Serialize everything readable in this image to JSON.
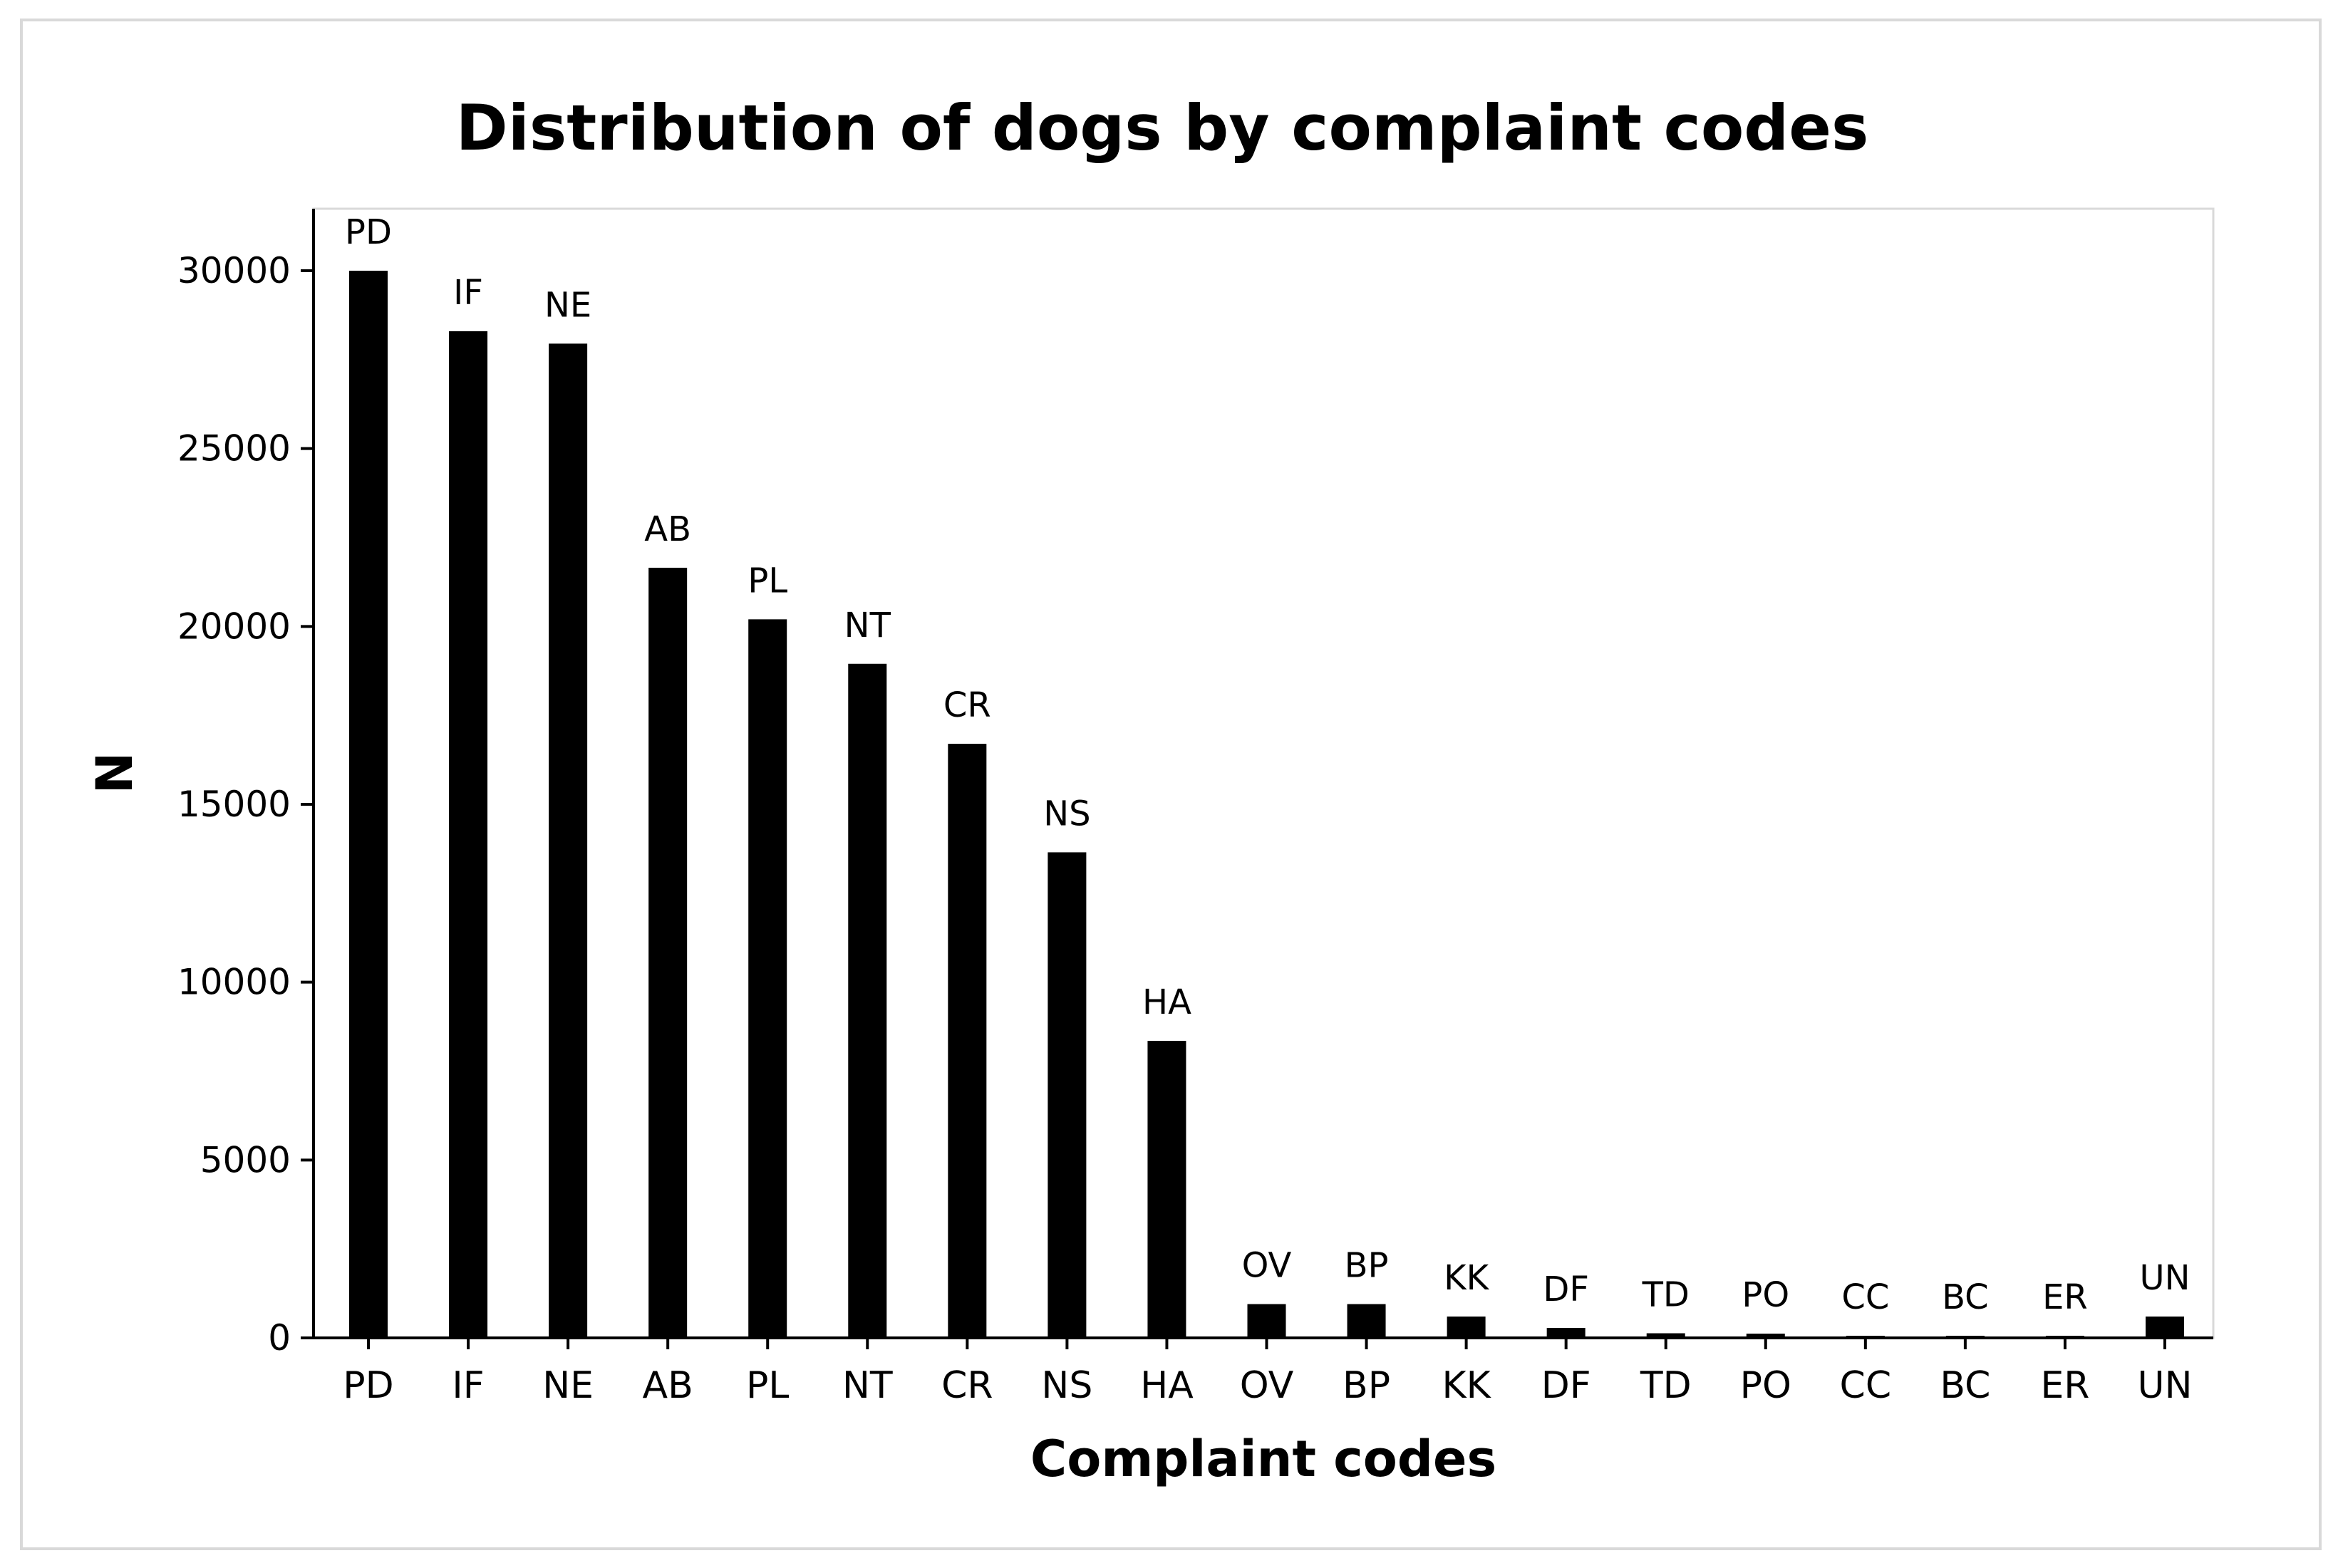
{
  "chart_data": {
    "type": "bar",
    "title": "Distribution of dogs by complaint codes",
    "xlabel": "Complaint codes",
    "ylabel": "N",
    "categories": [
      "PD",
      "IF",
      "NE",
      "AB",
      "PL",
      "NT",
      "CR",
      "NS",
      "HA",
      "OV",
      "BP",
      "KK",
      "DF",
      "TD",
      "PO",
      "CC",
      "BC",
      "ER",
      "UN"
    ],
    "values": [
      30000,
      28300,
      27950,
      21650,
      20200,
      18950,
      16700,
      13650,
      8350,
      950,
      950,
      600,
      280,
      130,
      120,
      60,
      60,
      55,
      600
    ],
    "bar_labels": [
      "PD",
      "IF",
      "NE",
      "AB",
      "PL",
      "NT",
      "CR",
      "NS",
      "HA",
      "OV",
      "BP",
      "KK",
      "DF",
      "TD",
      "PO",
      "CC",
      "BC",
      "ER",
      "UN"
    ],
    "yticks": [
      0,
      5000,
      10000,
      15000,
      20000,
      25000,
      30000
    ],
    "ylim": [
      0,
      32000
    ],
    "grid": false,
    "bar_color": "#000000",
    "frame_color": "#d9d9d9"
  }
}
